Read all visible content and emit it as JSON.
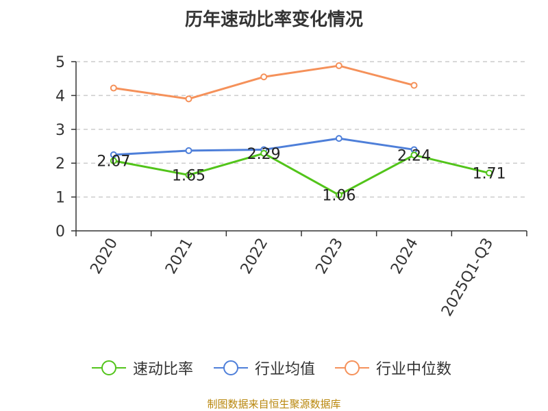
{
  "colors": {
    "series_0": "#52c41a",
    "series_1": "#4e7fd9",
    "series_2": "#f5915a",
    "grid": "#cccccc",
    "axis": "#333333",
    "source": "#b8860b"
  },
  "source_text": "制图数据来自恒生聚源数据库",
  "chart_data": {
    "type": "line",
    "title": "历年速动比率变化情况",
    "xlabel": "",
    "ylabel": "",
    "categories": [
      "2020",
      "2021",
      "2022",
      "2023",
      "2024",
      "2025Q1-Q3"
    ],
    "ylim": [
      0,
      5
    ],
    "yticks": [
      "0",
      "1",
      "2",
      "3",
      "4",
      "5"
    ],
    "grid": "horizontal dashed",
    "legend_position": "bottom",
    "series": [
      {
        "name": "速动比率",
        "values": [
          2.07,
          1.65,
          2.29,
          1.06,
          2.24,
          1.71
        ],
        "labels": [
          "2.07",
          "1.65",
          "2.29",
          "1.06",
          "2.24",
          "1.71"
        ]
      },
      {
        "name": "行业均值",
        "values": [
          2.25,
          2.37,
          2.4,
          2.73,
          2.4,
          null
        ]
      },
      {
        "name": "行业中位数",
        "values": [
          4.22,
          3.9,
          4.55,
          4.88,
          4.3,
          null
        ]
      }
    ]
  }
}
